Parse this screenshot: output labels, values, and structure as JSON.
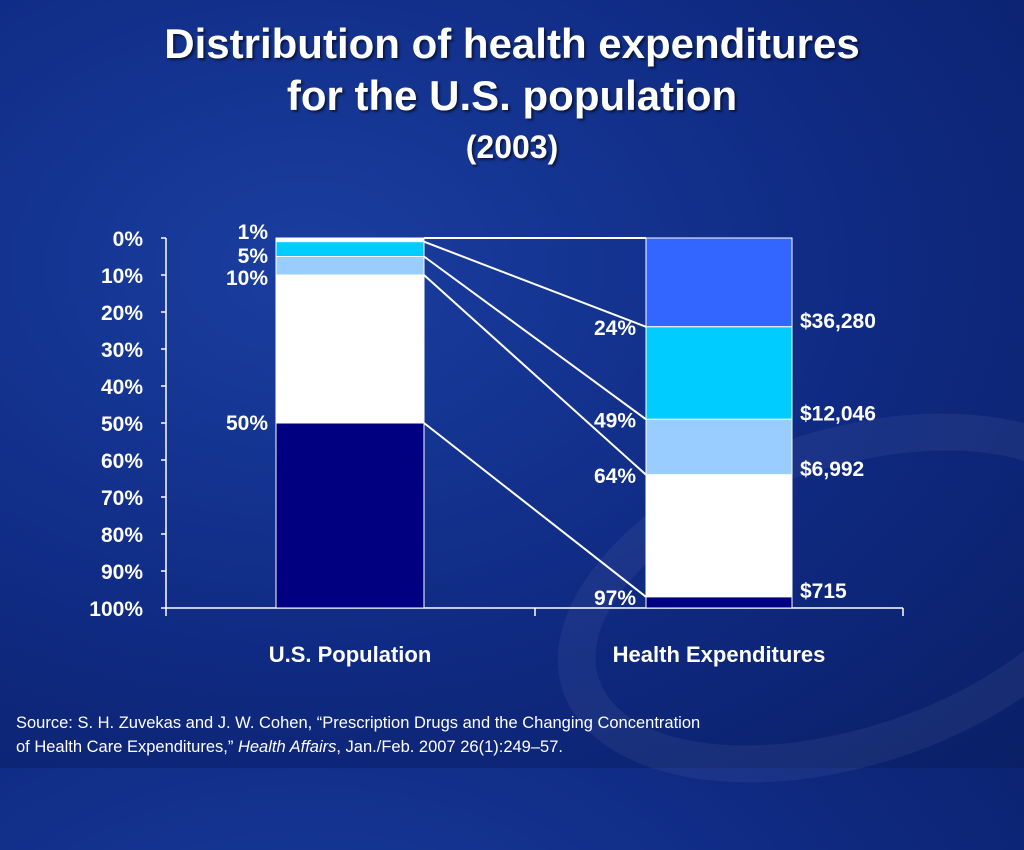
{
  "title": {
    "line1": "Distribution of health expenditures",
    "line2": "for the U.S. population",
    "line3": "(2003)"
  },
  "source": {
    "prefix": "Source: S. H. Zuvekas and J. W. Cohen, “Prescription Drugs and the Changing Concentration",
    "line2_start": "of Health Care Expenditures,” ",
    "journal": "Health Affairs",
    "line2_end": ", Jan./Feb. 2007 26(1):249–57."
  },
  "colors": {
    "dark_navy": "#000080",
    "white": "#ffffff",
    "light_blue": "#99ccff",
    "cyan": "#00ccff",
    "royal_blue": "#3366ff"
  },
  "chart_data": {
    "type": "bar",
    "subtype": "stacked-100-percent",
    "categories": [
      "U.S. Population",
      "Health Expenditures"
    ],
    "y_axis": {
      "ticks": [
        "0%",
        "10%",
        "20%",
        "30%",
        "40%",
        "50%",
        "60%",
        "70%",
        "80%",
        "90%",
        "100%"
      ],
      "range": [
        0,
        100
      ],
      "inverted": true
    },
    "grid": false,
    "population_segments": [
      {
        "from": 0,
        "to": 1,
        "color": "#ffffff",
        "label": "1%"
      },
      {
        "from": 1,
        "to": 5,
        "color": "#00ccff",
        "label": "5%"
      },
      {
        "from": 5,
        "to": 10,
        "color": "#99ccff",
        "label": "10%"
      },
      {
        "from": 10,
        "to": 50,
        "color": "#ffffff",
        "label": ""
      },
      {
        "from": 50,
        "to": 100,
        "color": "#000080",
        "label": "50%"
      }
    ],
    "expenditure_segments": [
      {
        "from": 0,
        "to": 24,
        "color": "#3366ff"
      },
      {
        "from": 24,
        "to": 49,
        "color": "#00ccff"
      },
      {
        "from": 49,
        "to": 64,
        "color": "#99ccff"
      },
      {
        "from": 64,
        "to": 97,
        "color": "#ffffff"
      },
      {
        "from": 97,
        "to": 100,
        "color": "#000080"
      }
    ],
    "connectors": [
      {
        "from_pop": 1,
        "to_exp": 24,
        "pct_label": "24%",
        "dollar_label": "$36,280"
      },
      {
        "from_pop": 5,
        "to_exp": 49,
        "pct_label": "49%",
        "dollar_label": "$12,046"
      },
      {
        "from_pop": 10,
        "to_exp": 64,
        "pct_label": "64%",
        "dollar_label": "$6,992"
      },
      {
        "from_pop": 50,
        "to_exp": 97,
        "pct_label": "97%",
        "dollar_label": "$715"
      }
    ]
  }
}
